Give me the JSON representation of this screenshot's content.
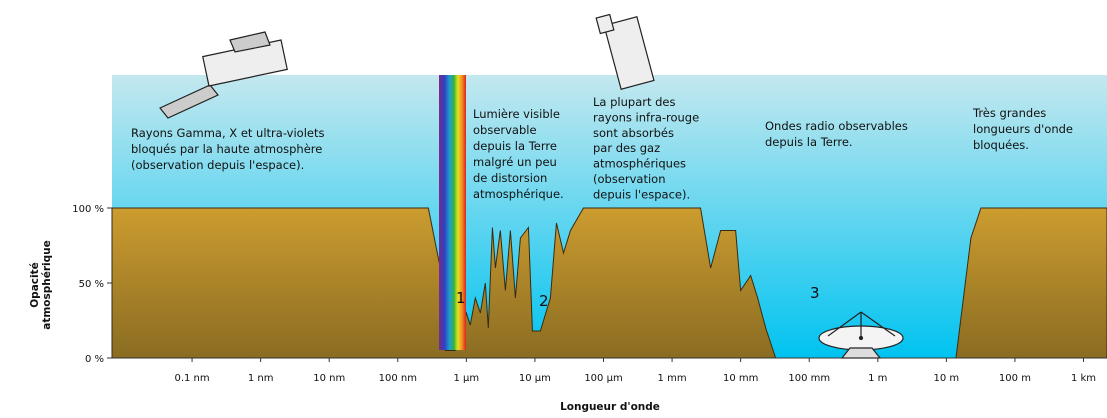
{
  "chart_data": {
    "type": "area",
    "x_label": "Longueur d'onde",
    "y_label_lines": [
      "Opacité",
      "atmosphérique"
    ],
    "log_x": true,
    "xlim": [
      6.8e-12,
      2200
    ],
    "ylim": [
      0,
      100
    ],
    "xticks": [
      {
        "value": 1e-10,
        "label": "0.1 nm"
      },
      {
        "value": 1e-09,
        "label": "1 nm"
      },
      {
        "value": 1e-08,
        "label": "10 nm"
      },
      {
        "value": 1e-07,
        "label": "100 nm"
      },
      {
        "value": 1e-06,
        "label": "1 µm"
      },
      {
        "value": 1e-05,
        "label": "10 µm"
      },
      {
        "value": 0.0001,
        "label": "100 µm"
      },
      {
        "value": 0.001,
        "label": "1 mm"
      },
      {
        "value": 0.01,
        "label": "10 mm"
      },
      {
        "value": 0.1,
        "label": "100 mm"
      },
      {
        "value": 1,
        "label": "1 m"
      },
      {
        "value": 10,
        "label": "10 m"
      },
      {
        "value": 100,
        "label": "100 m"
      },
      {
        "value": 1000,
        "label": "1 km"
      }
    ],
    "yticks": [
      {
        "value": 0,
        "label": "0 %"
      },
      {
        "value": 50,
        "label": "50 %"
      },
      {
        "value": 100,
        "label": "100 %"
      }
    ],
    "series": [
      {
        "color": "#b8902c",
        "x": [
          6.8e-12,
          2.79e-07,
          4.17e-07,
          4.93e-07,
          6.9e-07,
          8.75e-07,
          1e-06,
          1.14e-06,
          1.35e-06,
          1.6e-06,
          1.89e-06,
          2.09e-06,
          2.4e-06,
          2.65e-06,
          3.13e-06,
          3.71e-06,
          4.39e-06,
          5.19e-06,
          6.14e-06,
          8.04e-06,
          9.2e-06,
          1.2e-05,
          1.68e-05,
          2.06e-05,
          2.61e-05,
          3.3e-05,
          5.1e-05,
          0.0026,
          0.00365,
          0.0051,
          0.00845,
          0.01,
          0.014,
          0.0177,
          0.0232,
          0.0324,
          13.8,
          22.8,
          31.9,
          2200
        ],
        "values": [
          100,
          100,
          60,
          5,
          5,
          20,
          30,
          22,
          40,
          30,
          50,
          20,
          87,
          60,
          85,
          45,
          85,
          40,
          80,
          87,
          18,
          18,
          40,
          90,
          70,
          85,
          100,
          100,
          60,
          85,
          85,
          45,
          55,
          40,
          20,
          0,
          0,
          80,
          100,
          100
        ]
      }
    ],
    "annotations": [
      {
        "lines": [
          "Rayons Gamma, X et ultra-violets",
          "bloqués par la haute atmosphère",
          "(observation depuis l'espace)."
        ]
      },
      {
        "lines": [
          "Lumière visible",
          "observable",
          "depuis la Terre",
          "malgré un peu",
          "de distorsion",
          "atmosphérique."
        ]
      },
      {
        "lines": [
          "La plupart des",
          "rayons infra-rouge",
          "sont absorbés",
          "par des gaz",
          "atmosphériques",
          "(observation",
          "depuis l'espace)."
        ]
      },
      {
        "lines": [
          "Ondes radio observables",
          "depuis la Terre."
        ]
      },
      {
        "lines": [
          "Très grandes",
          "longueurs d'onde",
          "bloquées."
        ]
      },
      {
        "lines": [
          "1"
        ]
      },
      {
        "lines": [
          "2"
        ]
      },
      {
        "lines": [
          "3"
        ]
      }
    ]
  }
}
